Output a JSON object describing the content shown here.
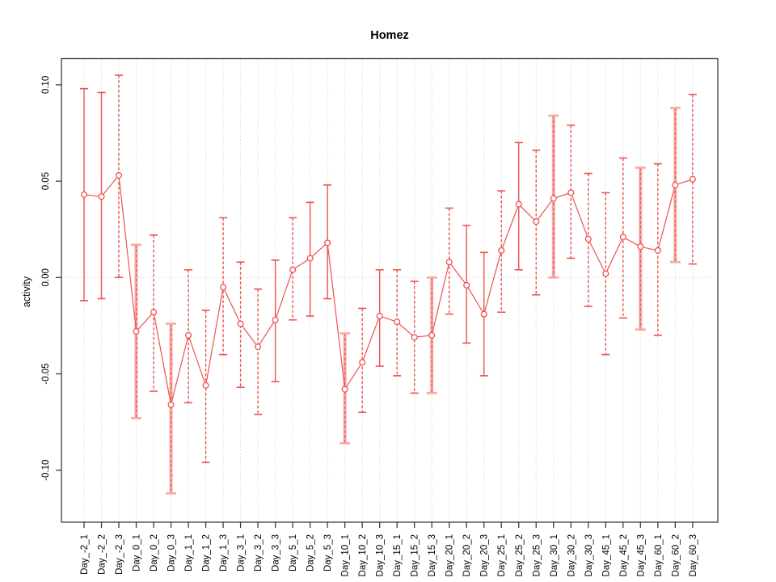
{
  "chart_data": {
    "type": "line",
    "title": "Homez",
    "xlabel": "",
    "ylabel": "activity",
    "ylim": [
      -0.128,
      0.114
    ],
    "yticks": [
      0.1,
      0.05,
      0.0,
      -0.05,
      -0.1
    ],
    "ytick_labels": [
      "0.10",
      "0.05",
      "0.00",
      "-0.05",
      "-0.10"
    ],
    "grid": "dotted vertical gridline at every category; dotted horizontal line at y=0",
    "legend": "none",
    "marker": "open-circle",
    "categories": [
      "Day_-2_1",
      "Day_-2_2",
      "Day_-2_3",
      "Day_0_1",
      "Day_0_2",
      "Day_0_3",
      "Day_1_1",
      "Day_1_2",
      "Day_1_3",
      "Day_3_1",
      "Day_3_2",
      "Day_3_3",
      "Day_5_1",
      "Day_5_2",
      "Day_5_3",
      "Day_10_1",
      "Day_10_2",
      "Day_10_3",
      "Day_15_1",
      "Day_15_2",
      "Day_15_3",
      "Day_20_1",
      "Day_20_2",
      "Day_20_3",
      "Day_25_1",
      "Day_25_2",
      "Day_25_3",
      "Day_30_1",
      "Day_30_2",
      "Day_30_3",
      "Day_45_1",
      "Day_45_2",
      "Day_45_3",
      "Day_60_1",
      "Day_60_2",
      "Day_60_3"
    ],
    "series": [
      {
        "name": "activity",
        "values": [
          0.043,
          0.042,
          0.053,
          -0.028,
          -0.018,
          -0.066,
          -0.03,
          -0.056,
          -0.005,
          -0.024,
          -0.036,
          -0.022,
          0.004,
          0.01,
          0.018,
          -0.058,
          -0.044,
          -0.02,
          -0.023,
          -0.031,
          -0.03,
          0.008,
          -0.004,
          -0.019,
          0.014,
          0.038,
          0.029,
          0.041,
          0.044,
          0.02,
          0.002,
          0.021,
          0.016,
          0.014,
          0.048,
          0.051
        ],
        "error_high": [
          0.098,
          0.096,
          0.105,
          0.017,
          0.022,
          -0.024,
          0.004,
          -0.017,
          0.031,
          0.008,
          -0.006,
          0.009,
          0.031,
          0.039,
          0.048,
          -0.029,
          -0.016,
          0.004,
          0.004,
          -0.002,
          0.0,
          0.036,
          0.027,
          0.013,
          0.045,
          0.07,
          0.066,
          0.084,
          0.079,
          0.054,
          0.044,
          0.062,
          0.057,
          0.059,
          0.088,
          0.095
        ],
        "error_low": [
          -0.012,
          -0.011,
          0.0,
          -0.073,
          -0.059,
          -0.112,
          -0.065,
          -0.096,
          -0.04,
          -0.057,
          -0.071,
          -0.054,
          -0.022,
          -0.02,
          -0.011,
          -0.086,
          -0.07,
          -0.046,
          -0.051,
          -0.06,
          -0.06,
          -0.019,
          -0.034,
          -0.051,
          -0.018,
          0.004,
          -0.009,
          0.0,
          0.01,
          -0.015,
          -0.04,
          -0.021,
          -0.027,
          -0.03,
          0.008,
          0.007
        ],
        "bar_styles": [
          "solid",
          "solid",
          "dashed",
          "pink",
          "dashed",
          "pink",
          "dashed",
          "dashed",
          "dashed",
          "dashed",
          "dashed",
          "solid",
          "dashed",
          "solid",
          "solid",
          "pink",
          "dashed",
          "solid",
          "dashed",
          "dashed",
          "pink",
          "dashed",
          "solid",
          "solid",
          "dashed",
          "solid",
          "dashed",
          "pink",
          "dashed",
          "dashed",
          "dashed",
          "dashed",
          "pink",
          "dashed",
          "pink",
          "dashed"
        ]
      }
    ]
  },
  "colors": {
    "series_red": "#ec5350",
    "bar_pink": "#f8a8a5",
    "bar_dashed_red": "#e4433f",
    "grid_gray": "#d9d9d9",
    "zero_line_gray": "#d9d9d9",
    "axis_black": "#3d3d3d",
    "text_black": "#000000"
  }
}
